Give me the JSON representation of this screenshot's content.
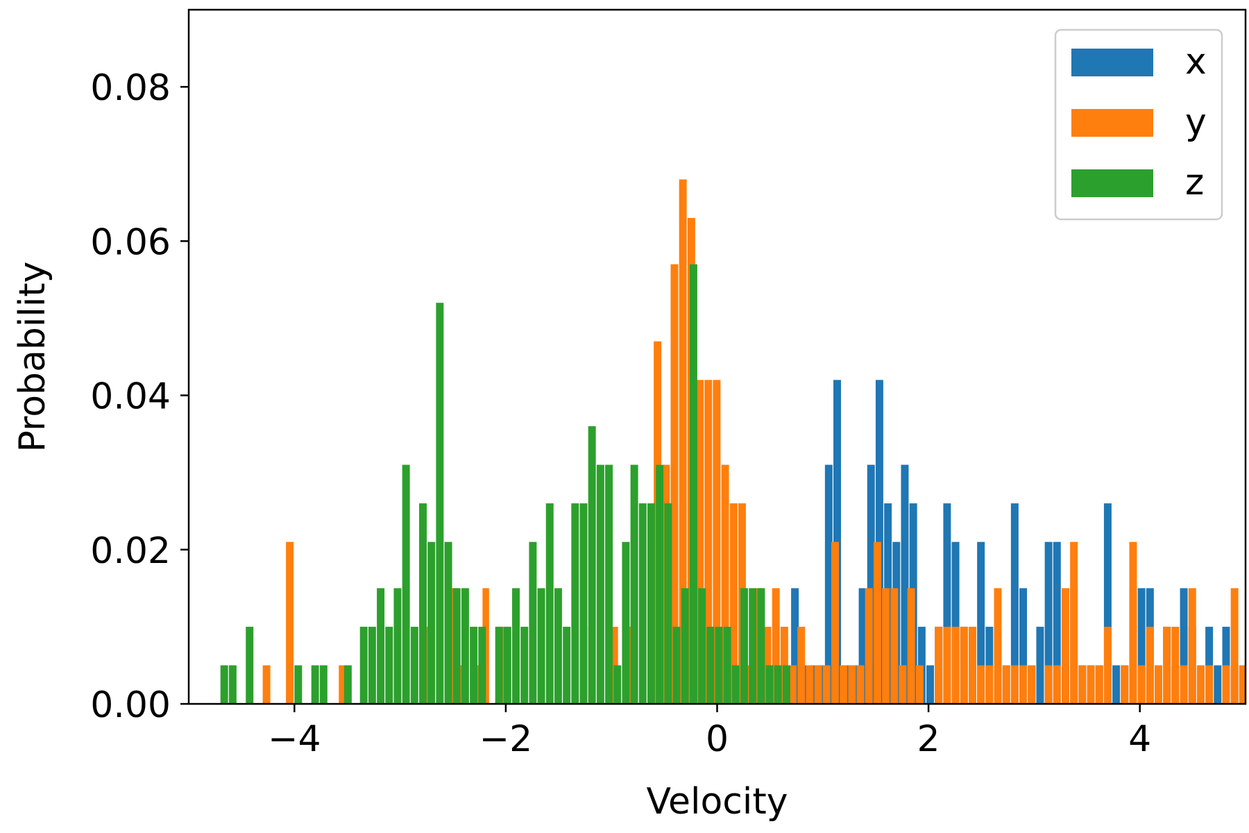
{
  "chart_data": {
    "type": "bar",
    "xlabel": "Velocity",
    "ylabel": "Probability",
    "xlim": [
      -5.0,
      5.0
    ],
    "ylim": [
      0.0,
      0.09
    ],
    "xticks": [
      {
        "value": -4,
        "label": "−4"
      },
      {
        "value": -2,
        "label": "−2"
      },
      {
        "value": 0,
        "label": "0"
      },
      {
        "value": 2,
        "label": "2"
      },
      {
        "value": 4,
        "label": "4"
      }
    ],
    "yticks": [
      {
        "value": 0.0,
        "label": "0.00"
      },
      {
        "value": 0.02,
        "label": "0.02"
      },
      {
        "value": 0.04,
        "label": "0.04"
      },
      {
        "value": 0.06,
        "label": "0.06"
      },
      {
        "value": 0.08,
        "label": "0.08"
      }
    ],
    "legend_position": "top-right",
    "series": [
      {
        "name": "x",
        "color": "#1f77b4",
        "bins": [
          [
            0.7,
            0.78,
            0.015
          ],
          [
            0.78,
            0.86,
            0.005
          ],
          [
            0.86,
            0.94,
            0.005
          ],
          [
            0.94,
            1.02,
            0.005
          ],
          [
            1.02,
            1.1,
            0.031
          ],
          [
            1.1,
            1.18,
            0.042
          ],
          [
            1.18,
            1.26,
            0.005
          ],
          [
            1.26,
            1.34,
            0.005
          ],
          [
            1.34,
            1.42,
            0.015
          ],
          [
            1.42,
            1.5,
            0.031
          ],
          [
            1.5,
            1.58,
            0.042
          ],
          [
            1.58,
            1.66,
            0.026
          ],
          [
            1.66,
            1.74,
            0.021
          ],
          [
            1.74,
            1.82,
            0.031
          ],
          [
            1.82,
            1.9,
            0.026
          ],
          [
            1.9,
            1.98,
            0.01
          ],
          [
            1.98,
            2.06,
            0.005
          ],
          [
            2.06,
            2.14,
            0.01
          ],
          [
            2.14,
            2.22,
            0.026
          ],
          [
            2.22,
            2.3,
            0.021
          ],
          [
            2.3,
            2.38,
            0.01
          ],
          [
            2.38,
            2.46,
            0.005
          ],
          [
            2.46,
            2.54,
            0.021
          ],
          [
            2.54,
            2.62,
            0.01
          ],
          [
            2.62,
            2.7,
            0.01
          ],
          [
            2.7,
            2.78,
            0.005
          ],
          [
            2.78,
            2.86,
            0.026
          ],
          [
            2.86,
            2.94,
            0.015
          ],
          [
            2.94,
            3.02,
            0.005
          ],
          [
            3.02,
            3.1,
            0.01
          ],
          [
            3.1,
            3.18,
            0.021
          ],
          [
            3.18,
            3.26,
            0.021
          ],
          [
            3.26,
            3.34,
            0.005
          ],
          [
            3.34,
            3.42,
            0.015
          ],
          [
            3.42,
            3.5,
            0.005
          ],
          [
            3.5,
            3.58,
            0.005
          ],
          [
            3.58,
            3.66,
            0.005
          ],
          [
            3.66,
            3.74,
            0.026
          ],
          [
            3.74,
            3.82,
            0.005
          ],
          [
            3.82,
            3.9,
            0.005
          ],
          [
            3.9,
            3.98,
            0.015
          ],
          [
            3.98,
            4.06,
            0.015
          ],
          [
            4.06,
            4.14,
            0.015
          ],
          [
            4.14,
            4.22,
            0.005
          ],
          [
            4.22,
            4.3,
            0.01
          ],
          [
            4.3,
            4.38,
            0.005
          ],
          [
            4.38,
            4.46,
            0.015
          ],
          [
            4.46,
            4.54,
            0.01
          ],
          [
            4.54,
            4.62,
            0.005
          ],
          [
            4.62,
            4.7,
            0.01
          ],
          [
            4.7,
            4.78,
            0.005
          ],
          [
            4.78,
            4.86,
            0.01
          ],
          [
            4.86,
            4.94,
            0.005
          ],
          [
            4.94,
            5.0,
            0.005
          ]
        ]
      },
      {
        "name": "y",
        "color": "#ff7f0e",
        "bins": [
          [
            -4.3,
            -4.22,
            0.005
          ],
          [
            -4.08,
            -4.0,
            0.021
          ],
          [
            -3.58,
            -3.51,
            0.005
          ],
          [
            -2.75,
            -2.67,
            0.01
          ],
          [
            -2.51,
            -2.44,
            0.015
          ],
          [
            -2.44,
            -2.37,
            0.005
          ],
          [
            -2.3,
            -2.22,
            0.005
          ],
          [
            -2.22,
            -2.15,
            0.015
          ],
          [
            -2.08,
            -2.0,
            0.01
          ],
          [
            -1.22,
            -1.15,
            0.01
          ],
          [
            -1.0,
            -0.93,
            0.01
          ],
          [
            -0.85,
            -0.78,
            0.01
          ],
          [
            -1.02,
            -0.94,
            0.008
          ],
          [
            -0.6,
            -0.52,
            0.026
          ],
          [
            -0.6,
            -0.52,
            0.047
          ],
          [
            -0.52,
            -0.44,
            0.031
          ],
          [
            -0.44,
            -0.36,
            0.057
          ],
          [
            -0.36,
            -0.28,
            0.068
          ],
          [
            -0.28,
            -0.2,
            0.063
          ],
          [
            -0.2,
            -0.12,
            0.042
          ],
          [
            -0.12,
            -0.04,
            0.042
          ],
          [
            -0.04,
            0.04,
            0.042
          ],
          [
            0.04,
            0.12,
            0.031
          ],
          [
            0.12,
            0.2,
            0.026
          ],
          [
            0.2,
            0.28,
            0.026
          ],
          [
            0.28,
            0.36,
            0.005
          ],
          [
            0.36,
            0.44,
            0.015
          ],
          [
            0.44,
            0.52,
            0.01
          ],
          [
            0.52,
            0.6,
            0.015
          ],
          [
            0.6,
            0.68,
            0.01
          ],
          [
            0.68,
            0.76,
            0.005
          ],
          [
            0.76,
            0.84,
            0.01
          ],
          [
            0.84,
            0.92,
            0.005
          ],
          [
            0.92,
            1.0,
            0.005
          ],
          [
            1.0,
            1.08,
            0.005
          ],
          [
            1.08,
            1.16,
            0.021
          ],
          [
            1.16,
            1.24,
            0.005
          ],
          [
            1.24,
            1.32,
            0.005
          ],
          [
            1.32,
            1.4,
            0.005
          ],
          [
            1.4,
            1.48,
            0.015
          ],
          [
            1.48,
            1.56,
            0.021
          ],
          [
            1.56,
            1.64,
            0.015
          ],
          [
            1.64,
            1.72,
            0.015
          ],
          [
            1.72,
            1.8,
            0.005
          ],
          [
            1.8,
            1.88,
            0.015
          ],
          [
            1.88,
            1.96,
            0.005
          ],
          [
            2.06,
            2.14,
            0.01
          ],
          [
            2.14,
            2.22,
            0.01
          ],
          [
            2.22,
            2.3,
            0.01
          ],
          [
            2.3,
            2.38,
            0.01
          ],
          [
            2.38,
            2.46,
            0.01
          ],
          [
            2.46,
            2.54,
            0.005
          ],
          [
            2.54,
            2.62,
            0.005
          ],
          [
            2.62,
            2.7,
            0.015
          ],
          [
            2.7,
            2.78,
            0.005
          ],
          [
            2.78,
            2.86,
            0.005
          ],
          [
            2.86,
            2.94,
            0.005
          ],
          [
            2.94,
            3.02,
            0.005
          ],
          [
            3.1,
            3.18,
            0.005
          ],
          [
            3.18,
            3.26,
            0.005
          ],
          [
            3.26,
            3.34,
            0.015
          ],
          [
            3.34,
            3.42,
            0.021
          ],
          [
            3.42,
            3.5,
            0.005
          ],
          [
            3.5,
            3.58,
            0.005
          ],
          [
            3.58,
            3.66,
            0.005
          ],
          [
            3.66,
            3.74,
            0.01
          ],
          [
            3.82,
            3.9,
            0.005
          ],
          [
            3.9,
            3.98,
            0.021
          ],
          [
            3.98,
            4.06,
            0.005
          ],
          [
            4.06,
            4.14,
            0.01
          ],
          [
            4.14,
            4.22,
            0.005
          ],
          [
            4.22,
            4.3,
            0.01
          ],
          [
            4.3,
            4.38,
            0.01
          ],
          [
            4.38,
            4.46,
            0.005
          ],
          [
            4.46,
            4.54,
            0.015
          ],
          [
            4.54,
            4.62,
            0.005
          ],
          [
            4.62,
            4.7,
            0.005
          ],
          [
            4.78,
            4.86,
            0.005
          ],
          [
            4.86,
            4.94,
            0.015
          ],
          [
            4.94,
            5.0,
            0.005
          ]
        ]
      },
      {
        "name": "z",
        "color": "#2ca02c",
        "bins": [
          [
            -4.7,
            -4.62,
            0.005
          ],
          [
            -4.62,
            -4.54,
            0.005
          ],
          [
            -4.46,
            -4.38,
            0.01
          ],
          [
            -4.0,
            -3.92,
            0.005
          ],
          [
            -3.84,
            -3.76,
            0.005
          ],
          [
            -3.76,
            -3.68,
            0.005
          ],
          [
            -3.53,
            -3.45,
            0.005
          ],
          [
            -3.38,
            -3.3,
            0.01
          ],
          [
            -3.3,
            -3.22,
            0.01
          ],
          [
            -3.22,
            -3.14,
            0.015
          ],
          [
            -3.14,
            -3.06,
            0.01
          ],
          [
            -3.06,
            -2.98,
            0.015
          ],
          [
            -2.98,
            -2.9,
            0.031
          ],
          [
            -2.9,
            -2.82,
            0.01
          ],
          [
            -2.82,
            -2.74,
            0.026
          ],
          [
            -2.74,
            -2.66,
            0.021
          ],
          [
            -2.66,
            -2.58,
            0.052
          ],
          [
            -2.58,
            -2.5,
            0.021
          ],
          [
            -2.5,
            -2.42,
            0.015
          ],
          [
            -2.42,
            -2.34,
            0.015
          ],
          [
            -2.34,
            -2.26,
            0.01
          ],
          [
            -2.26,
            -2.18,
            0.01
          ],
          [
            -2.1,
            -2.02,
            0.01
          ],
          [
            -2.02,
            -1.94,
            0.01
          ],
          [
            -1.94,
            -1.86,
            0.015
          ],
          [
            -1.86,
            -1.78,
            0.01
          ],
          [
            -1.78,
            -1.7,
            0.021
          ],
          [
            -1.7,
            -1.62,
            0.015
          ],
          [
            -1.62,
            -1.54,
            0.026
          ],
          [
            -1.54,
            -1.46,
            0.015
          ],
          [
            -1.46,
            -1.38,
            0.01
          ],
          [
            -1.38,
            -1.3,
            0.026
          ],
          [
            -1.3,
            -1.22,
            0.026
          ],
          [
            -1.22,
            -1.14,
            0.036
          ],
          [
            -1.14,
            -1.06,
            0.031
          ],
          [
            -1.06,
            -0.98,
            0.031
          ],
          [
            -0.98,
            -0.9,
            0.005
          ],
          [
            -0.9,
            -0.82,
            0.021
          ],
          [
            -0.82,
            -0.74,
            0.031
          ],
          [
            -0.74,
            -0.66,
            0.026
          ],
          [
            -0.66,
            -0.58,
            0.026
          ],
          [
            -0.58,
            -0.5,
            0.031
          ],
          [
            -0.5,
            -0.42,
            0.026
          ],
          [
            -0.42,
            -0.34,
            0.01
          ],
          [
            -0.34,
            -0.26,
            0.015
          ],
          [
            -0.26,
            -0.18,
            0.057
          ],
          [
            -0.18,
            -0.1,
            0.015
          ],
          [
            -0.1,
            -0.02,
            0.01
          ],
          [
            -0.02,
            0.06,
            0.01
          ],
          [
            0.06,
            0.14,
            0.01
          ],
          [
            0.14,
            0.22,
            0.005
          ],
          [
            0.22,
            0.3,
            0.015
          ],
          [
            0.3,
            0.38,
            0.015
          ],
          [
            0.38,
            0.46,
            0.015
          ],
          [
            0.46,
            0.54,
            0.005
          ],
          [
            0.54,
            0.62,
            0.005
          ],
          [
            0.62,
            0.7,
            0.005
          ]
        ]
      }
    ]
  }
}
